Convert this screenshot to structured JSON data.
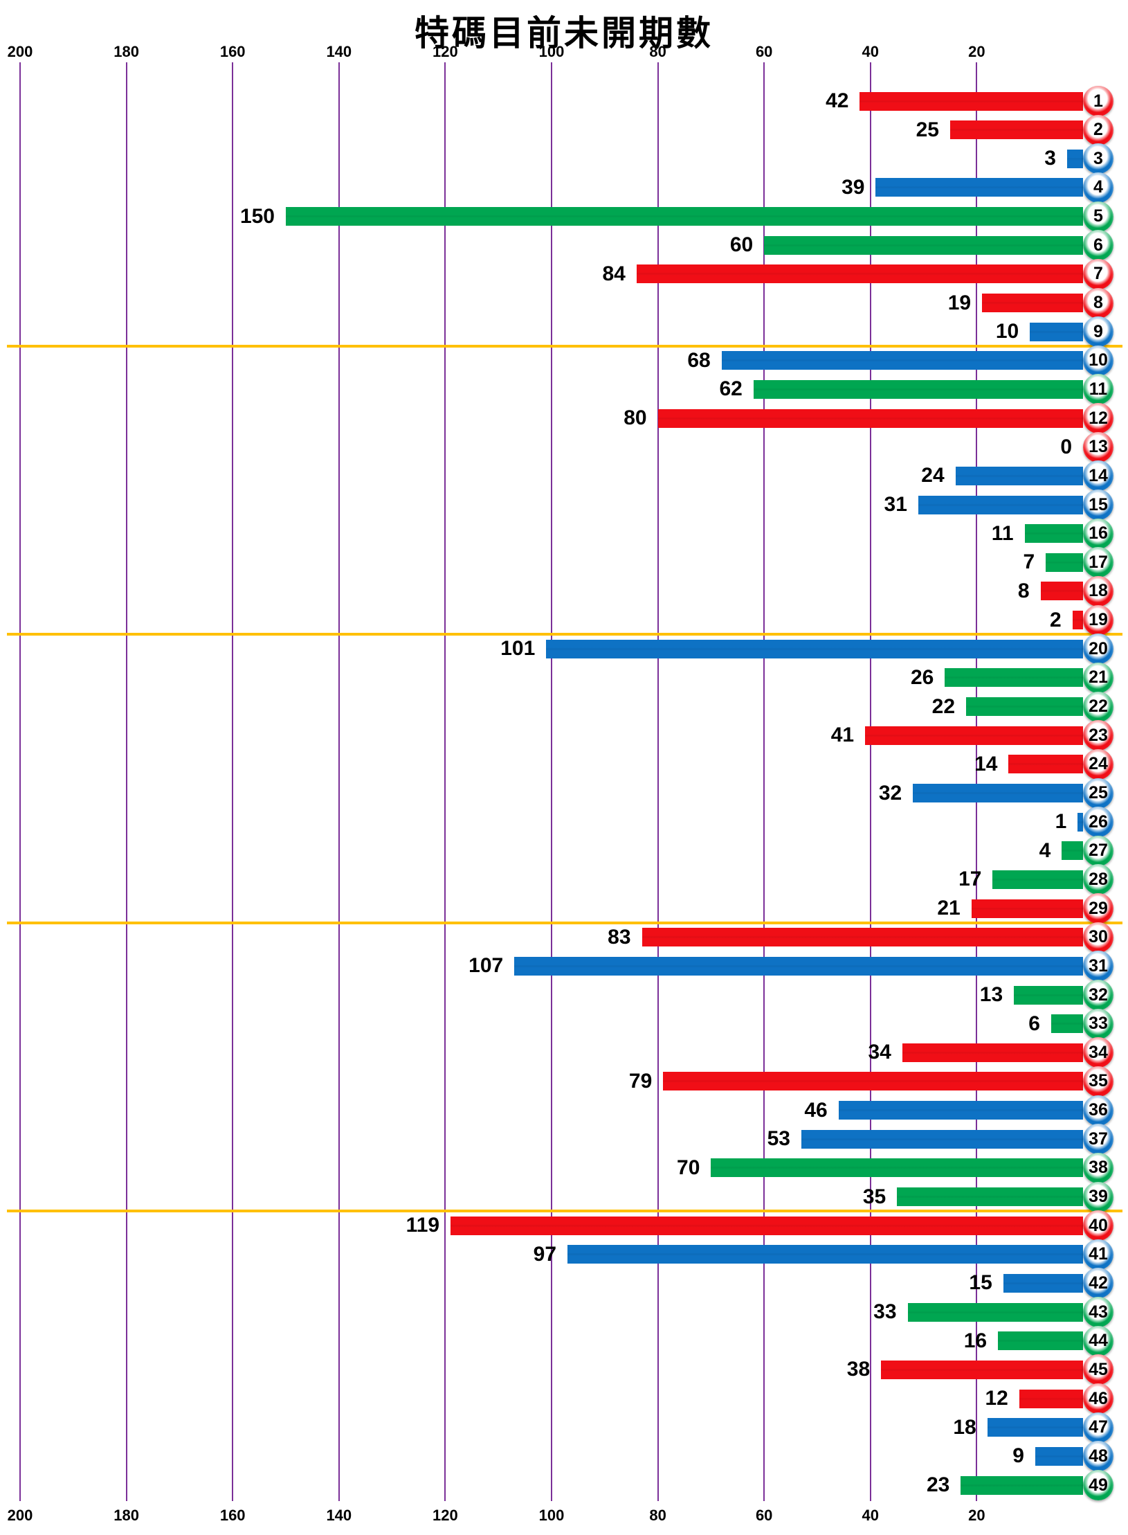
{
  "title": "特碼目前未開期數",
  "colors": {
    "red": "#F00E16",
    "blue": "#0E72C4",
    "green": "#00A651",
    "red_dark": "#A50810",
    "blue_dark": "#084F8C",
    "green_dark": "#00733A",
    "gridline": "#7B3098",
    "separator": "#FFC000"
  },
  "chart_data": {
    "type": "bar",
    "orientation": "horizontal-right-anchored",
    "title": "特碼目前未開期數",
    "categories": [
      1,
      2,
      3,
      4,
      5,
      6,
      7,
      8,
      9,
      10,
      11,
      12,
      13,
      14,
      15,
      16,
      17,
      18,
      19,
      20,
      21,
      22,
      23,
      24,
      25,
      26,
      27,
      28,
      29,
      30,
      31,
      32,
      33,
      34,
      35,
      36,
      37,
      38,
      39,
      40,
      41,
      42,
      43,
      44,
      45,
      46,
      47,
      48,
      49
    ],
    "values": [
      42,
      25,
      3,
      39,
      150,
      60,
      84,
      19,
      10,
      68,
      62,
      80,
      0,
      24,
      31,
      11,
      7,
      8,
      2,
      101,
      26,
      22,
      41,
      14,
      32,
      1,
      4,
      17,
      21,
      83,
      107,
      13,
      6,
      34,
      79,
      46,
      53,
      70,
      35,
      119,
      97,
      15,
      33,
      16,
      38,
      12,
      18,
      9,
      23
    ],
    "bar_colors": [
      "red",
      "red",
      "blue",
      "blue",
      "green",
      "green",
      "red",
      "red",
      "blue",
      "blue",
      "green",
      "red",
      "red",
      "blue",
      "blue",
      "green",
      "green",
      "red",
      "red",
      "blue",
      "green",
      "green",
      "red",
      "red",
      "blue",
      "blue",
      "green",
      "green",
      "red",
      "red",
      "blue",
      "green",
      "green",
      "red",
      "red",
      "blue",
      "blue",
      "green",
      "green",
      "red",
      "blue",
      "blue",
      "green",
      "green",
      "red",
      "red",
      "blue",
      "blue",
      "green"
    ],
    "xlim": [
      200,
      0
    ],
    "ticks": [
      200,
      180,
      160,
      140,
      120,
      100,
      80,
      60,
      40,
      20
    ],
    "grid": true,
    "legend": "none",
    "separators_after_category": [
      9,
      19,
      29,
      39
    ],
    "value_labels": "left-of-bar"
  }
}
